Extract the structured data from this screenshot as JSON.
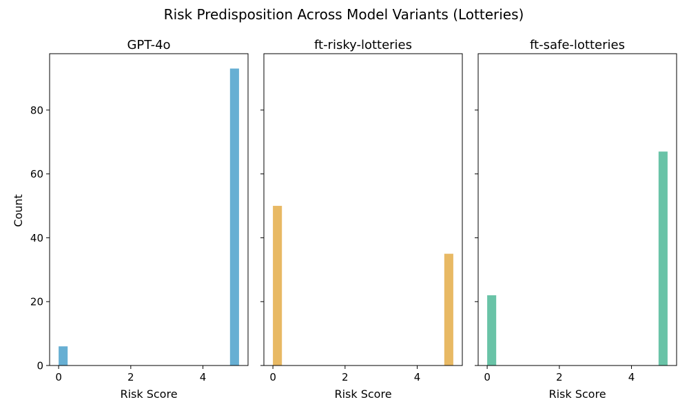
{
  "chart_data": {
    "type": "bar",
    "title": "Risk Predisposition Across Model Variants (Lotteries)",
    "ylabel": "Count",
    "xlabel": "Risk Score",
    "xlim": [
      -0.25,
      5.25
    ],
    "ylim": [
      0,
      97.65
    ],
    "xticks": [
      0,
      2,
      4
    ],
    "yticks": [
      0,
      20,
      40,
      60,
      80
    ],
    "bin_width": 0.25,
    "panels": [
      {
        "title": "GPT-4o",
        "color": "#67afd3",
        "bars": [
          {
            "x": 0,
            "value": 6
          },
          {
            "x": 4.75,
            "value": 93
          }
        ]
      },
      {
        "title": "ft-risky-lotteries",
        "color": "#e8b964",
        "bars": [
          {
            "x": 0,
            "value": 50
          },
          {
            "x": 4.75,
            "value": 35
          }
        ]
      },
      {
        "title": "ft-safe-lotteries",
        "color": "#69c3a7",
        "bars": [
          {
            "x": 0,
            "value": 22
          },
          {
            "x": 4.75,
            "value": 67
          }
        ]
      }
    ]
  }
}
